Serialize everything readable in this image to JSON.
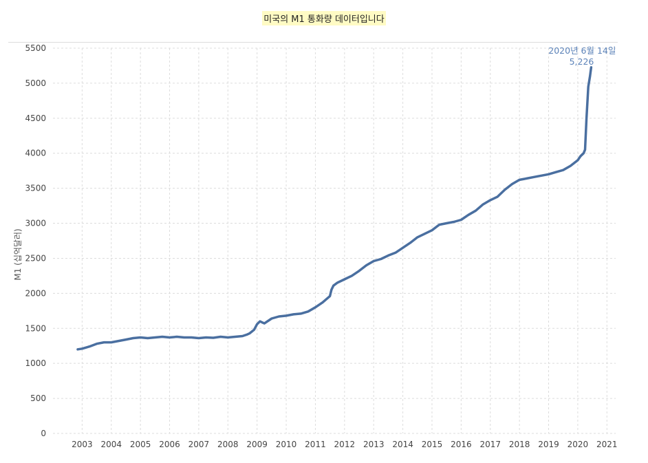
{
  "chart_data": {
    "type": "line",
    "title": "미국의 M1 통화량 데이터입니다",
    "ylabel": "M1 (십억달러)",
    "xlabel": "",
    "ylim": [
      0,
      5500
    ],
    "xlim": [
      2002.0,
      2021.3
    ],
    "yticks": [
      0,
      500,
      1000,
      1500,
      2000,
      2500,
      3000,
      3500,
      4000,
      4500,
      5000,
      5500
    ],
    "xticks": [
      2003,
      2004,
      2005,
      2006,
      2007,
      2008,
      2009,
      2010,
      2011,
      2012,
      2013,
      2014,
      2015,
      2016,
      2017,
      2018,
      2019,
      2020,
      2021
    ],
    "grid": true,
    "line_color": "#4a6fa0",
    "annotation": {
      "date_label": "2020년 6월 14일",
      "value_label": "5,226",
      "color": "#5b82b8"
    },
    "series": [
      {
        "x": [
          2002.85,
          2003.0,
          2003.25,
          2003.5,
          2003.75,
          2004.0,
          2004.25,
          2004.5,
          2004.75,
          2005.0,
          2005.25,
          2005.5,
          2005.75,
          2006.0,
          2006.25,
          2006.5,
          2006.75,
          2007.0,
          2007.25,
          2007.5,
          2007.75,
          2008.0,
          2008.25,
          2008.5,
          2008.65,
          2008.75,
          2008.9,
          2009.0,
          2009.1,
          2009.25,
          2009.5,
          2009.75,
          2010.0,
          2010.25,
          2010.5,
          2010.75,
          2011.0,
          2011.25,
          2011.5,
          2011.55,
          2011.62,
          2011.75,
          2012.0,
          2012.25,
          2012.5,
          2012.75,
          2013.0,
          2013.25,
          2013.5,
          2013.75,
          2014.0,
          2014.25,
          2014.5,
          2014.75,
          2015.0,
          2015.25,
          2015.5,
          2015.75,
          2016.0,
          2016.25,
          2016.5,
          2016.75,
          2017.0,
          2017.25,
          2017.5,
          2017.75,
          2018.0,
          2018.25,
          2018.5,
          2018.75,
          2019.0,
          2019.25,
          2019.5,
          2019.75,
          2020.0,
          2020.1,
          2020.2,
          2020.25,
          2020.3,
          2020.36,
          2020.42,
          2020.46
        ],
        "y": [
          1200,
          1210,
          1240,
          1280,
          1300,
          1300,
          1320,
          1340,
          1360,
          1370,
          1360,
          1370,
          1380,
          1370,
          1380,
          1370,
          1370,
          1360,
          1370,
          1365,
          1380,
          1370,
          1380,
          1390,
          1410,
          1430,
          1480,
          1560,
          1600,
          1570,
          1640,
          1670,
          1680,
          1700,
          1710,
          1740,
          1800,
          1870,
          1960,
          2050,
          2110,
          2150,
          2200,
          2250,
          2320,
          2400,
          2460,
          2490,
          2540,
          2580,
          2650,
          2720,
          2800,
          2850,
          2900,
          2980,
          3000,
          3020,
          3050,
          3120,
          3180,
          3270,
          3330,
          3380,
          3480,
          3560,
          3620,
          3640,
          3660,
          3680,
          3700,
          3730,
          3760,
          3820,
          3900,
          3960,
          4000,
          4050,
          4500,
          4950,
          5100,
          5226
        ]
      }
    ]
  }
}
